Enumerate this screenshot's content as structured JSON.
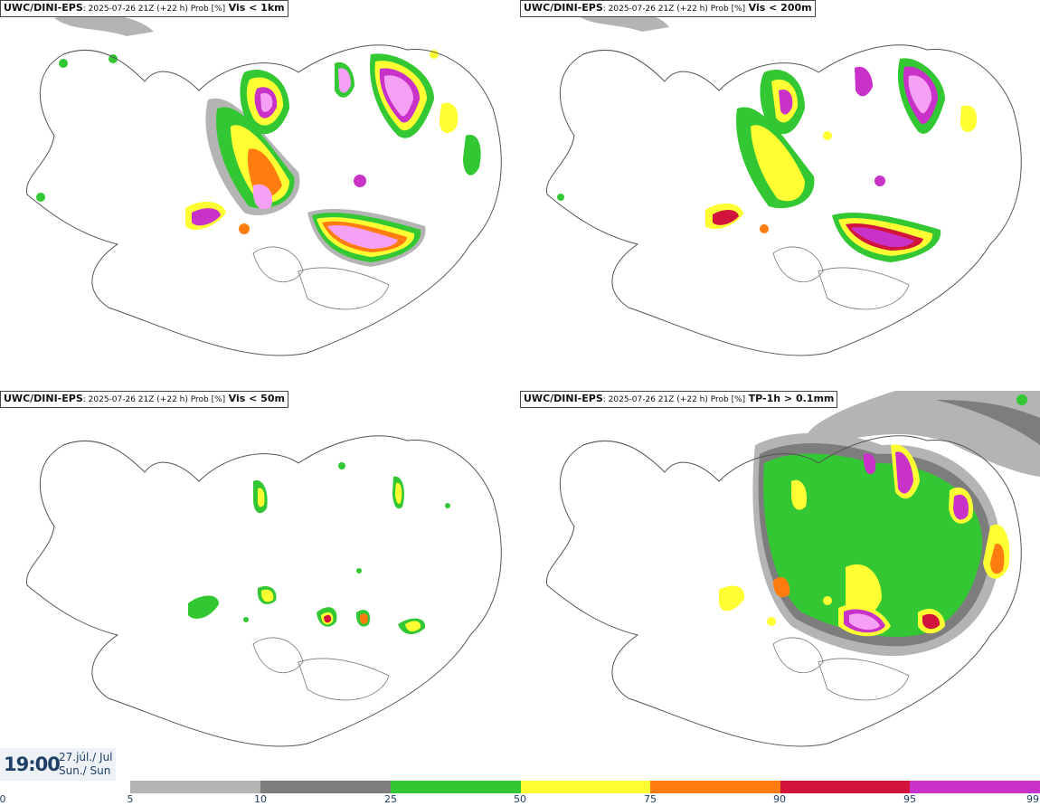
{
  "panels": [
    {
      "model": "UWC/DINI-EPS",
      "meta": ": 2025-07-26 21Z (+22 h) Prob [%]",
      "var": "Vis < 1km"
    },
    {
      "model": "UWC/DINI-EPS",
      "meta": ": 2025-07-26 21Z (+22 h) Prob [%]",
      "var": "Vis < 200m"
    },
    {
      "model": "UWC/DINI-EPS",
      "meta": ": 2025-07-26 21Z (+22 h) Prob [%]",
      "var": "Vis < 50m"
    },
    {
      "model": "UWC/DINI-EPS",
      "meta": ": 2025-07-26 21Z (+22 h) Prob [%]",
      "var": "TP-1h > 0.1mm"
    }
  ],
  "valid": {
    "time": "19:00",
    "date_line1": "27.júl./ Jul",
    "date_line2": "Sun./ Sun"
  },
  "legend": {
    "ticks": [
      "0",
      "5",
      "10",
      "25",
      "50",
      "75",
      "90",
      "95",
      "99"
    ],
    "colors": [
      "#b4b4b4",
      "#7d7d7d",
      "#33c833",
      "#ffff33",
      "#ff7d10",
      "#d2143c",
      "#c832c8",
      "#f5a0f5"
    ]
  }
}
